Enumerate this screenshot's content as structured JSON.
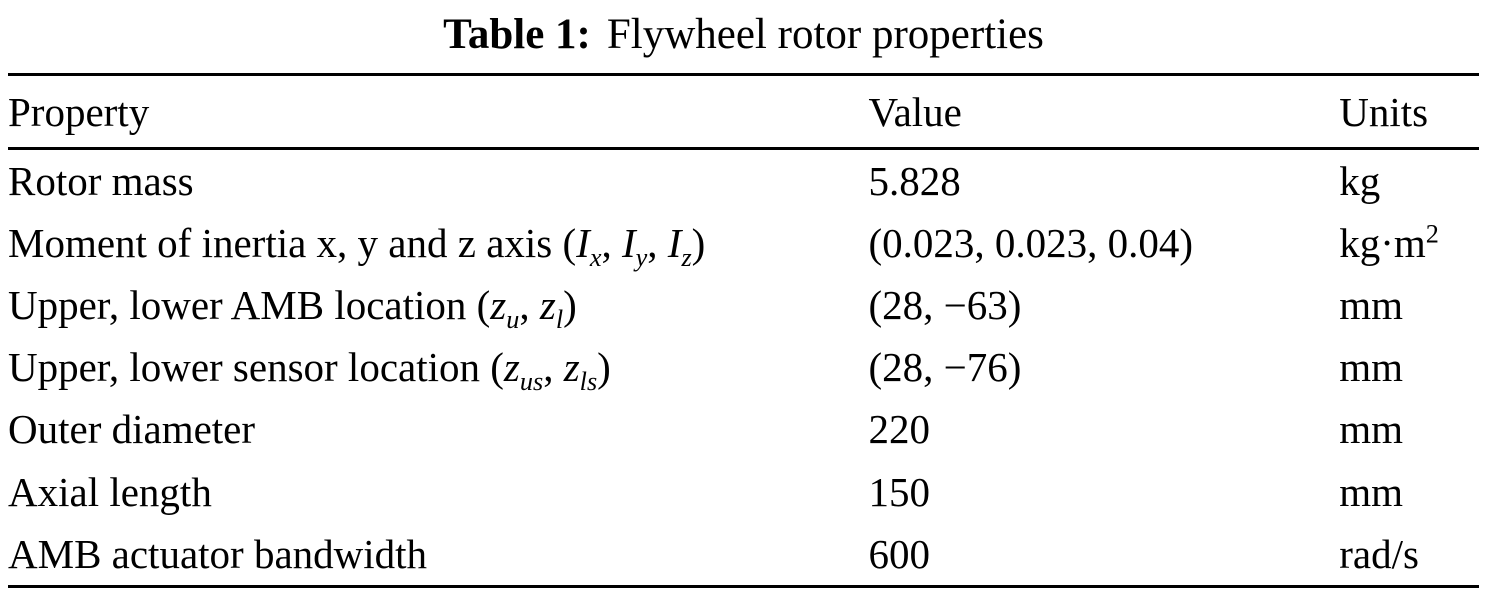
{
  "caption": {
    "label": "Table 1:",
    "title": "Flywheel rotor properties"
  },
  "table": {
    "headers": [
      "Property",
      "Value",
      "Units"
    ],
    "rows": [
      {
        "property": [
          {
            "t": "Rotor mass"
          }
        ],
        "value": [
          {
            "t": "5.828"
          }
        ],
        "units": [
          {
            "t": "kg"
          }
        ]
      },
      {
        "property": [
          {
            "t": "Moment of inertia x, y and z axis ("
          },
          {
            "t": "I",
            "i": true
          },
          {
            "t": "x",
            "s": "sub",
            "i": true
          },
          {
            "t": ", "
          },
          {
            "t": "I",
            "i": true
          },
          {
            "t": "y",
            "s": "sub",
            "i": true
          },
          {
            "t": ", "
          },
          {
            "t": "I",
            "i": true
          },
          {
            "t": "z",
            "s": "sub",
            "i": true
          },
          {
            "t": ")"
          }
        ],
        "value": [
          {
            "t": "(0.023, 0.023, 0.04)"
          }
        ],
        "units": [
          {
            "t": "kg·m"
          },
          {
            "t": "2",
            "s": "sup"
          }
        ]
      },
      {
        "property": [
          {
            "t": "Upper, lower AMB location ("
          },
          {
            "t": "z",
            "i": true
          },
          {
            "t": "u",
            "s": "sub",
            "i": true
          },
          {
            "t": ", "
          },
          {
            "t": "z",
            "i": true
          },
          {
            "t": "l",
            "s": "sub",
            "i": true
          },
          {
            "t": ")"
          }
        ],
        "value": [
          {
            "t": "(28, −63)"
          }
        ],
        "units": [
          {
            "t": "mm"
          }
        ]
      },
      {
        "property": [
          {
            "t": "Upper, lower sensor location ("
          },
          {
            "t": "z",
            "i": true
          },
          {
            "t": "us",
            "s": "sub",
            "i": true
          },
          {
            "t": ", "
          },
          {
            "t": "z",
            "i": true
          },
          {
            "t": "ls",
            "s": "sub",
            "i": true
          },
          {
            "t": ")"
          }
        ],
        "value": [
          {
            "t": "(28, −76)"
          }
        ],
        "units": [
          {
            "t": "mm"
          }
        ]
      },
      {
        "property": [
          {
            "t": "Outer diameter"
          }
        ],
        "value": [
          {
            "t": "220"
          }
        ],
        "units": [
          {
            "t": "mm"
          }
        ]
      },
      {
        "property": [
          {
            "t": "Axial length"
          }
        ],
        "value": [
          {
            "t": "150"
          }
        ],
        "units": [
          {
            "t": "mm"
          }
        ]
      },
      {
        "property": [
          {
            "t": "AMB actuator bandwidth"
          }
        ],
        "value": [
          {
            "t": "600"
          }
        ],
        "units": [
          {
            "t": "rad/s"
          }
        ]
      }
    ]
  }
}
